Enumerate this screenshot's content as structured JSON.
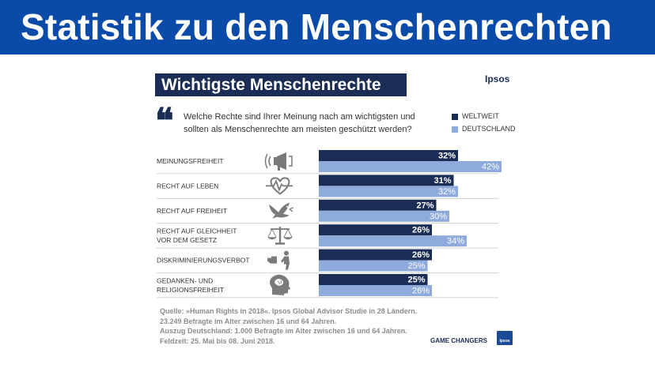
{
  "header": {
    "title": "Statistik zu den Menschenrechten"
  },
  "slide": {
    "subtitle": "Wichtigste Menschenrechte",
    "brand": "Ipsos",
    "quote_mark": "❝",
    "question": "Welche Rechte sind Ihrer Meinung nach am wichtigsten und sollten als Menschenrechte am meisten geschützt werden?"
  },
  "colors": {
    "banner": "#0a4aa8",
    "weltweit": "#1b2d54",
    "deutschland": "#8eabdb",
    "accent": "#1b2d54"
  },
  "chart_data": {
    "type": "bar",
    "orientation": "horizontal",
    "categories": [
      [
        "MEINUNGSFREIHEIT"
      ],
      [
        "RECHT AUF LEBEN"
      ],
      [
        "RECHT AUF FREIHEIT"
      ],
      [
        "RECHT AUF GLEICHHEIT",
        "VOR DEM GESETZ"
      ],
      [
        "DISKRIMINIERUNGSVERBOT"
      ],
      [
        "GEDANKEN- UND",
        "RELIGIONSFREIHEIT"
      ]
    ],
    "icons": [
      "megaphone-icon",
      "heartbeat-icon",
      "dove-icon",
      "scales-icon",
      "stop-hand-icon",
      "head-brain-icon"
    ],
    "series": [
      {
        "name": "WELTWEIT",
        "values": [
          32,
          31,
          27,
          26,
          26,
          25
        ],
        "labels": [
          "32%",
          "31%",
          "27%",
          "26%",
          "26%",
          "25%"
        ]
      },
      {
        "name": "DEUTSCHLAND",
        "values": [
          42,
          32,
          30,
          34,
          25,
          26
        ],
        "labels": [
          "42%",
          "32%",
          "30%",
          "34%",
          "25%",
          "26%"
        ]
      }
    ],
    "xlim": [
      0,
      100
    ],
    "grid": false,
    "legend_position": "top-right"
  },
  "source": {
    "lines": [
      "Quelle: »Human Rights in 2018«. Ipsos Global Advisor Studie in 28 Ländern.",
      "23.249 Befragte im Alter zwischen 16 und 64 Jahren.",
      "Auszug Deutschland: 1.000 Befragte im Alter zwischen 16 und 64 Jahren.",
      "Feldzeit: 25. Mai bis 08. Juni 2018."
    ]
  },
  "footer": {
    "tag": "GAME CHANGERS",
    "logo_text": "Ipsos"
  }
}
